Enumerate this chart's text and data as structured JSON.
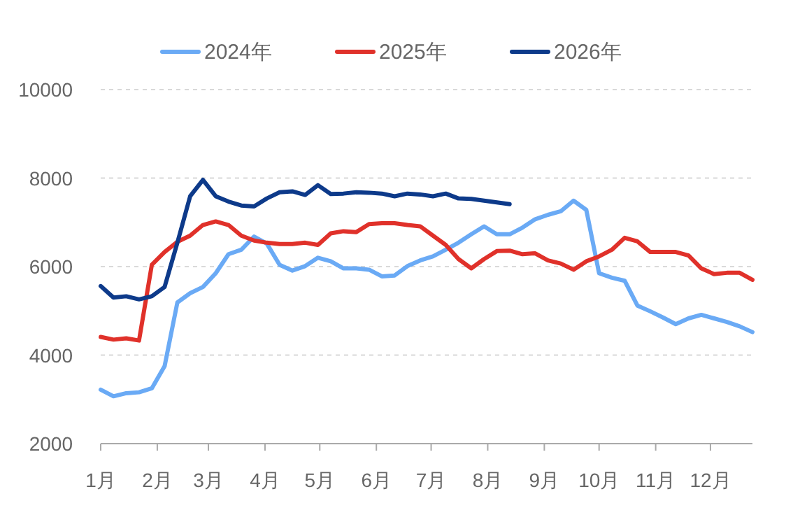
{
  "chart_data": {
    "type": "line",
    "x": [
      "--01-01",
      "--01-08",
      "--01-15",
      "--01-22",
      "--01-29",
      "--02-05",
      "--02-12",
      "--02-19",
      "--02-26",
      "--03-05",
      "--03-12",
      "--03-19",
      "--03-26",
      "--04-02",
      "--04-09",
      "--04-16",
      "--04-23",
      "--04-30",
      "--05-07",
      "--05-14",
      "--05-21",
      "--05-28",
      "--06-04",
      "--06-11",
      "--06-18",
      "--06-25",
      "--07-02",
      "--07-09",
      "--07-16",
      "--07-23",
      "--07-30",
      "--08-06",
      "--08-13",
      "--08-20",
      "--08-27",
      "--09-03",
      "--09-10",
      "--09-17",
      "--09-24",
      "--10-01",
      "--10-08",
      "--10-15",
      "--10-22",
      "--10-29",
      "--11-05",
      "--11-12",
      "--11-19",
      "--11-26",
      "--12-03",
      "--12-10",
      "--12-17",
      "--12-24"
    ],
    "series": [
      {
        "name": "2024年",
        "color": "#6aaaf5",
        "values": [
          3220,
          3070,
          3140,
          3160,
          3250,
          3750,
          5190,
          5400,
          5540,
          5850,
          6280,
          6380,
          6680,
          6520,
          6040,
          5910,
          6010,
          6200,
          6120,
          5960,
          5960,
          5930,
          5780,
          5800,
          6010,
          6140,
          6230,
          6380,
          6540,
          6730,
          6910,
          6730,
          6730,
          6880,
          7070,
          7170,
          7250,
          7490,
          7280,
          5850,
          5750,
          5680,
          5120,
          4990,
          4850,
          4700,
          4830,
          4910,
          4830,
          4750,
          4650,
          4520
        ]
      },
      {
        "name": "2025年",
        "color": "#e0312a",
        "values": [
          4410,
          4350,
          4380,
          4330,
          6040,
          6330,
          6560,
          6700,
          6940,
          7020,
          6940,
          6700,
          6590,
          6540,
          6510,
          6510,
          6540,
          6490,
          6750,
          6800,
          6780,
          6960,
          6980,
          6980,
          6940,
          6910,
          6700,
          6490,
          6170,
          5960,
          6170,
          6350,
          6360,
          6280,
          6300,
          6140,
          6070,
          5930,
          6120,
          6230,
          6380,
          6650,
          6570,
          6330,
          6330,
          6330,
          6250,
          5960,
          5830,
          5860,
          5860,
          5700
        ]
      },
      {
        "name": "2026年",
        "color": "#0d3a8a",
        "values": [
          5560,
          5300,
          5330,
          5260,
          5330,
          5540,
          6540,
          7590,
          7960,
          7590,
          7470,
          7380,
          7360,
          7540,
          7680,
          7700,
          7620,
          7840,
          7640,
          7650,
          7680,
          7670,
          7650,
          7590,
          7650,
          7630,
          7590,
          7650,
          7540,
          7530,
          7490,
          7450,
          7410,
          null,
          null,
          null,
          null,
          null,
          null,
          null,
          null,
          null,
          null,
          null,
          null,
          null,
          null,
          null,
          null,
          null,
          null,
          null
        ]
      }
    ],
    "xlim": [
      "--01-01",
      "--12-24"
    ],
    "xticks": [
      {
        "value": "--01-01",
        "label": "1月"
      },
      {
        "value": "--02-01",
        "label": "2月"
      },
      {
        "value": "--03-01",
        "label": "3月"
      },
      {
        "value": "--04-01",
        "label": "4月"
      },
      {
        "value": "--05-01",
        "label": "5月"
      },
      {
        "value": "--06-01",
        "label": "6月"
      },
      {
        "value": "--07-01",
        "label": "7月"
      },
      {
        "value": "--08-01",
        "label": "8月"
      },
      {
        "value": "--09-01",
        "label": "9月"
      },
      {
        "value": "--10-01",
        "label": "10月"
      },
      {
        "value": "--11-01",
        "label": "11月"
      },
      {
        "value": "--12-01",
        "label": "12月"
      }
    ],
    "ylim": [
      2000,
      10000
    ],
    "yticks": [
      2000,
      4000,
      6000,
      8000,
      10000
    ],
    "grid": "y",
    "legend": "top",
    "marker": "none",
    "line_style": "solid"
  }
}
